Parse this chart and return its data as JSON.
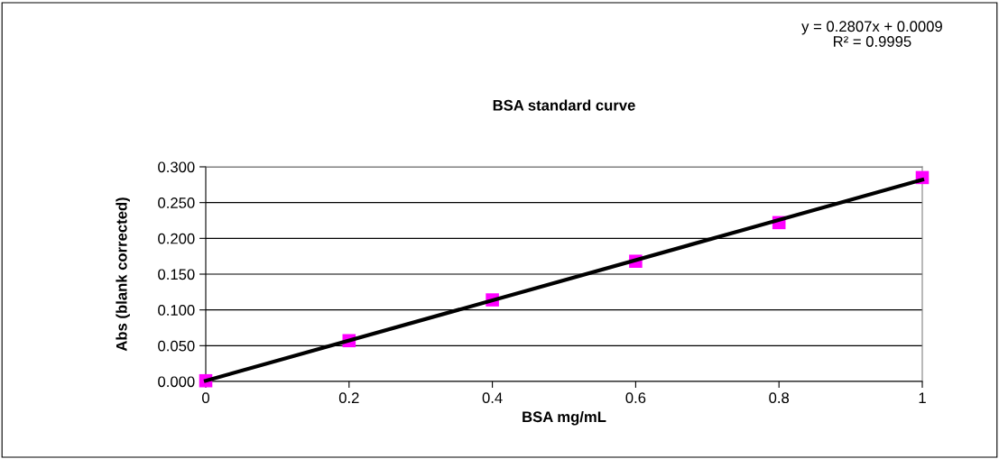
{
  "chart_data": {
    "type": "scatter",
    "title": "BSA standard curve",
    "xlabel": "BSA mg/mL",
    "ylabel": "Abs (blank corrected)",
    "annotations": [
      "y = 0.2807x + 0.0009\nR² = 0.9995"
    ],
    "x": [
      0,
      0.2,
      0.4,
      0.6,
      0.8,
      1
    ],
    "series": [
      {
        "color": "#ff00ff",
        "values": [
          0.001,
          0.057,
          0.114,
          0.168,
          0.222,
          0.285
        ],
        "marker": "square"
      },
      {
        "type": "line",
        "color": "#000000",
        "x": [
          0,
          1
        ],
        "values": [
          0.001,
          0.282
        ],
        "marker": "none"
      }
    ],
    "xlim": [
      0,
      1
    ],
    "xticks": [
      0,
      0.2,
      0.4,
      0.6,
      0.8,
      1
    ],
    "ylim": [
      0,
      0.3
    ],
    "yticks": [
      {
        "value": 0,
        "label": "0.000"
      },
      {
        "value": 0.05,
        "label": "0.050"
      },
      {
        "value": 0.1,
        "label": "0.100"
      },
      {
        "value": 0.15,
        "label": "0.150"
      },
      {
        "value": 0.2,
        "label": "0.200"
      },
      {
        "value": 0.25,
        "label": "0.250"
      },
      {
        "value": 0.3,
        "label": "0.300"
      }
    ],
    "grid": "y"
  }
}
